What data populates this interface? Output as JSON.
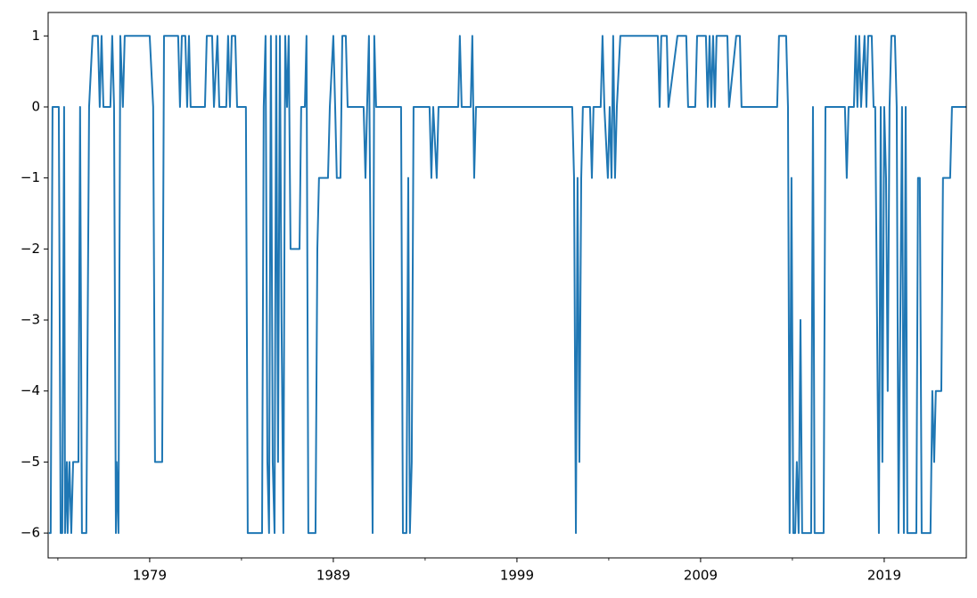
{
  "chart_data": {
    "type": "line",
    "color": "#1f77b4",
    "x": [
      1973.51,
      1973.61,
      1973.71,
      1974.05,
      1974.15,
      1974.24,
      1974.34,
      1974.39,
      1974.49,
      1974.53,
      1974.63,
      1974.73,
      1974.83,
      1974.97,
      1975.12,
      1975.21,
      1975.31,
      1975.55,
      1975.7,
      1975.89,
      1976.18,
      1976.28,
      1976.38,
      1976.48,
      1976.86,
      1976.96,
      1977.06,
      1977.16,
      1977.2,
      1977.3,
      1977.4,
      1977.54,
      1977.64,
      1979.0,
      1979.19,
      1979.29,
      1979.68,
      1979.78,
      1980.55,
      1980.65,
      1980.75,
      1980.94,
      1981.04,
      1981.14,
      1981.23,
      1982.01,
      1982.11,
      1982.4,
      1982.5,
      1982.69,
      1982.79,
      1983.17,
      1983.27,
      1983.37,
      1983.47,
      1983.66,
      1983.76,
      1984.24,
      1984.34,
      1985.12,
      1985.21,
      1985.31,
      1985.41,
      1985.5,
      1985.6,
      1985.7,
      1985.8,
      1985.89,
      1985.99,
      1986.09,
      1986.18,
      1986.28,
      1986.38,
      1986.48,
      1986.57,
      1986.67,
      1987.16,
      1987.25,
      1987.45,
      1987.54,
      1987.64,
      1988.03,
      1988.13,
      1988.22,
      1988.71,
      1988.81,
      1989.0,
      1989.1,
      1989.19,
      1989.39,
      1989.49,
      1989.68,
      1989.78,
      1990.65,
      1990.75,
      1990.84,
      1990.94,
      1991.14,
      1991.23,
      1991.33,
      1992.69,
      1992.79,
      1992.98,
      1993.08,
      1993.17,
      1993.27,
      1993.37,
      1994.24,
      1994.34,
      1994.44,
      1994.63,
      1994.73,
      1995.8,
      1995.89,
      1995.99,
      1996.48,
      1996.57,
      1996.67,
      1996.77,
      2002.01,
      2002.11,
      2002.21,
      2002.3,
      2002.4,
      2002.5,
      2002.59,
      2002.98,
      2003.08,
      2003.17,
      2003.56,
      2003.66,
      2003.76,
      2003.95,
      2004.05,
      2004.15,
      2004.24,
      2004.34,
      2004.44,
      2004.63,
      2006.67,
      2006.77,
      2006.86,
      2007.16,
      2007.25,
      2007.74,
      2008.22,
      2008.32,
      2008.71,
      2008.81,
      2009.29,
      2009.39,
      2009.49,
      2009.58,
      2009.68,
      2009.78,
      2009.87,
      2010.46,
      2010.55,
      2010.94,
      2011.14,
      2011.23,
      2013.17,
      2013.27,
      2013.66,
      2013.76,
      2013.85,
      2013.95,
      2014.05,
      2014.15,
      2014.24,
      2014.34,
      2014.44,
      2014.53,
      2015.02,
      2015.12,
      2015.21,
      2015.7,
      2015.8,
      2016.86,
      2016.96,
      2017.06,
      2017.35,
      2017.45,
      2017.54,
      2017.64,
      2017.74,
      2017.93,
      2018.03,
      2018.13,
      2018.32,
      2018.42,
      2018.51,
      2018.71,
      2018.81,
      2018.9,
      2019.0,
      2019.1,
      2019.19,
      2019.29,
      2019.39,
      2019.58,
      2019.68,
      2019.78,
      2019.97,
      2020.07,
      2020.17,
      2020.26,
      2020.75,
      2020.84,
      2020.94,
      2021.04,
      2021.52,
      2021.62,
      2021.72,
      2021.81,
      2022.11,
      2022.2,
      2022.59,
      2022.69,
      2023.47
    ],
    "values": [
      -6,
      -6,
      0,
      0,
      -6,
      -6,
      0,
      -6,
      -5,
      -6,
      -5,
      -6,
      -5,
      -5,
      -5,
      0,
      -6,
      -6,
      0,
      1,
      1,
      0,
      1,
      0,
      0,
      1,
      0,
      -6,
      -5,
      -6,
      1,
      0,
      1,
      1,
      0,
      -5,
      -5,
      1,
      1,
      0,
      1,
      1,
      0,
      1,
      0,
      0,
      1,
      1,
      0,
      1,
      0,
      0,
      1,
      0,
      1,
      1,
      0,
      0,
      -6,
      -6,
      0,
      1,
      -5,
      -6,
      1,
      -5,
      -6,
      1,
      -5,
      1,
      -3,
      -6,
      1,
      0,
      1,
      -2,
      -2,
      0,
      0,
      1,
      -6,
      -6,
      -2,
      -1,
      -1,
      0,
      1,
      0,
      -1,
      -1,
      1,
      1,
      0,
      0,
      -1,
      0,
      1,
      -6,
      1,
      0,
      0,
      -6,
      -6,
      -1,
      -6,
      -5,
      0,
      0,
      -1,
      0,
      -1,
      0,
      0,
      1,
      0,
      0,
      1,
      -1,
      0,
      0,
      -1,
      -6,
      -1,
      -5,
      -1,
      0,
      0,
      -1,
      0,
      0,
      1,
      0,
      -1,
      0,
      -1,
      1,
      -1,
      0,
      1,
      1,
      0,
      1,
      1,
      0,
      1,
      1,
      0,
      0,
      1,
      1,
      0,
      1,
      0,
      1,
      0,
      1,
      1,
      0,
      1,
      1,
      0,
      0,
      1,
      1,
      0,
      -6,
      -1,
      -6,
      -6,
      -5,
      -6,
      -3,
      -6,
      -6,
      0,
      -6,
      -6,
      0,
      0,
      -1,
      0,
      0,
      1,
      0,
      1,
      0,
      1,
      0,
      1,
      1,
      0,
      0,
      -6,
      0,
      -5,
      0,
      -1,
      -4,
      0,
      1,
      1,
      0,
      -6,
      0,
      -6,
      0,
      -6,
      -6,
      -1,
      -1,
      -6,
      -6,
      -4,
      -5,
      -4,
      -4,
      -1,
      -1,
      0,
      0
    ],
    "xlim": [
      1973.47,
      2023.47
    ],
    "xticks": [
      1979,
      1989,
      1999,
      2009,
      2019
    ],
    "xminorticks": [
      1974,
      1984,
      1994,
      2004,
      2014
    ],
    "ylim": [
      -6.35,
      1.33
    ],
    "yticks": [
      {
        "value": -6,
        "label": "−6"
      },
      {
        "value": -5,
        "label": "−5"
      },
      {
        "value": -4,
        "label": "−4"
      },
      {
        "value": -3,
        "label": "−3"
      },
      {
        "value": -2,
        "label": "−2"
      },
      {
        "value": -1,
        "label": "−1"
      },
      0,
      1
    ]
  }
}
